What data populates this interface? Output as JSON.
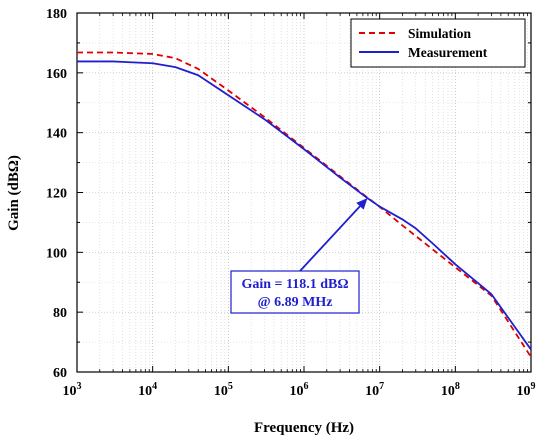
{
  "chart_data": {
    "type": "line",
    "title": "",
    "xlabel": "Frequency (Hz)",
    "ylabel": "Gain (dBΩ)",
    "xscale": "log",
    "xlim": [
      1000,
      1000000000
    ],
    "ylim": [
      60,
      180
    ],
    "grid": true,
    "legend_position": "top-right",
    "x_tick_labels": [
      {
        "base": "10",
        "exp": "3"
      },
      {
        "base": "10",
        "exp": "4"
      },
      {
        "base": "10",
        "exp": "5"
      },
      {
        "base": "10",
        "exp": "6"
      },
      {
        "base": "10",
        "exp": "7"
      },
      {
        "base": "10",
        "exp": "8"
      },
      {
        "base": "10",
        "exp": "9"
      }
    ],
    "y_tick_labels": [
      "60",
      "80",
      "100",
      "120",
      "140",
      "160",
      "180"
    ],
    "series": [
      {
        "name": "Simulation",
        "color": "#e00000",
        "dash": "dashed",
        "x": [
          1000,
          3000,
          10000,
          20000,
          40000,
          100000,
          300000,
          1000000,
          3000000,
          6890000,
          10000000,
          20000000,
          50000000,
          100000000,
          300000000,
          1000000000
        ],
        "y": [
          166.8,
          166.8,
          166.3,
          164.9,
          161.3,
          154.1,
          145.2,
          134.9,
          125.4,
          118.3,
          115.2,
          109.0,
          101.0,
          95.0,
          85.5,
          65.0
        ]
      },
      {
        "name": "Measurement",
        "color": "#1f1fcf",
        "dash": "solid",
        "x": [
          1000,
          3000,
          10000,
          20000,
          40000,
          100000,
          300000,
          1000000,
          3000000,
          6890000,
          10000000,
          20000000,
          30000000,
          50000000,
          100000000,
          300000000,
          1000000000
        ],
        "y": [
          163.8,
          163.8,
          163.2,
          161.9,
          159.2,
          152.5,
          144.5,
          134.5,
          125.0,
          118.1,
          115.3,
          111.0,
          108.0,
          103.0,
          96.0,
          86.0,
          67.5
        ]
      }
    ],
    "annotations": [
      {
        "line1": "Gain = 118.1 dBΩ",
        "line2": "@ 6.89 MHz",
        "x": 6890000,
        "y": 118.1
      }
    ]
  }
}
